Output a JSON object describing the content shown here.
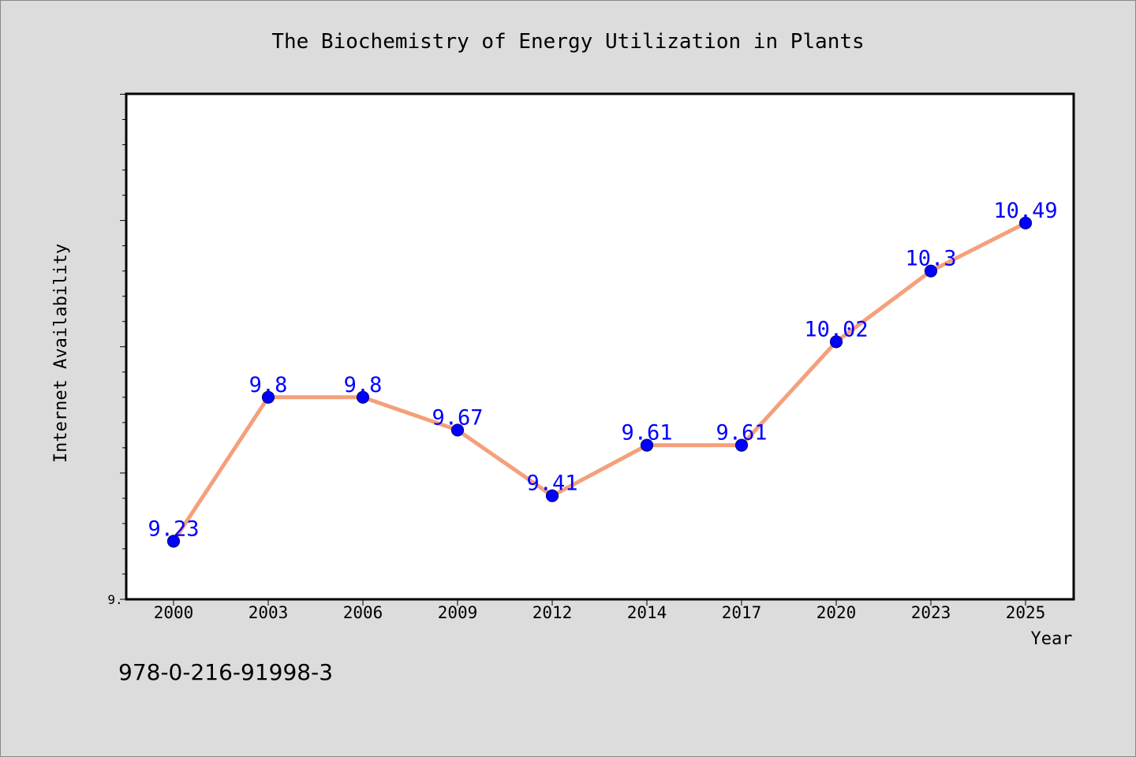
{
  "chart_data": {
    "type": "line",
    "title": "The Biochemistry of Energy Utilization in Plants",
    "xlabel": "Year",
    "ylabel": "Internet Availability",
    "categories": [
      "2000",
      "2003",
      "2006",
      "2009",
      "2012",
      "2014",
      "2017",
      "2020",
      "2023",
      "2025"
    ],
    "series": [
      {
        "values": [
          9.23,
          9.8,
          9.8,
          9.67,
          9.41,
          9.61,
          9.61,
          10.02,
          10.3,
          10.49
        ]
      }
    ],
    "data_labels": [
      "9.23",
      "9.8",
      "9.8",
      "9.67",
      "9.41",
      "9.61",
      "9.61",
      "10.02",
      "10.3",
      "10.49"
    ],
    "ylim": [
      9.0,
      11.0
    ],
    "y_tick_label": "9.",
    "grid": false,
    "legend": "none",
    "colors": {
      "line": "#f4a07c",
      "marker": "#0000ff",
      "marker_edge": "#00008b",
      "data_label": "#0000ff",
      "plot_background": "#ffffff",
      "figure_background": "#dcdcdc"
    }
  },
  "footer": {
    "isbn": "978-0-216-91998-3"
  }
}
